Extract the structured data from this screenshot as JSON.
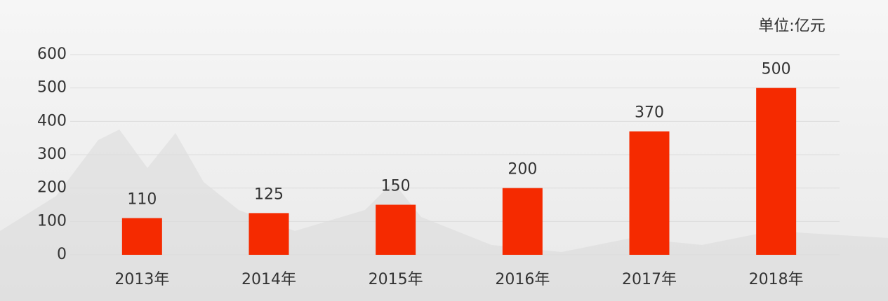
{
  "chart_data": {
    "type": "bar",
    "unit": "单位:亿元",
    "categories": [
      "2013年",
      "2014年",
      "2015年",
      "2016年",
      "2017年",
      "2018年"
    ],
    "values": [
      110,
      125,
      150,
      200,
      370,
      500
    ],
    "color": "#f52a00",
    "ylim": [
      0,
      600
    ],
    "yticks": [
      0,
      100,
      200,
      300,
      400,
      500,
      600
    ],
    "grid": true
  }
}
